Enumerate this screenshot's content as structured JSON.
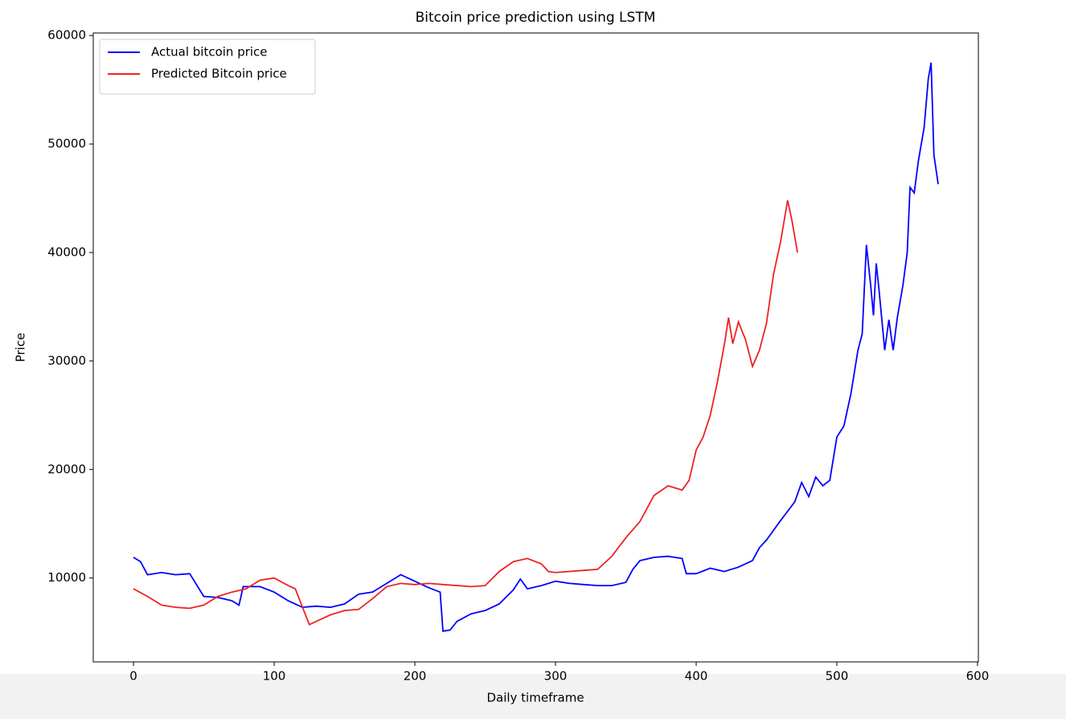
{
  "chart_data": {
    "type": "line",
    "title": "Bitcoin price prediction using LSTM",
    "x_label": "Daily timeframe",
    "y_label": "Price",
    "xlim": [
      -28.6,
      600.6
    ],
    "ylim": [
      2265,
      60235
    ],
    "xticks": [
      0,
      100,
      200,
      300,
      400,
      500,
      600
    ],
    "yticks": [
      10000,
      20000,
      30000,
      40000,
      50000,
      60000
    ],
    "legend": "upper left",
    "series": [
      {
        "name": "Actual bitcoin price",
        "color": "#0000ff",
        "x": [
          0,
          5,
          10,
          20,
          30,
          40,
          50,
          60,
          70,
          75,
          78,
          90,
          100,
          110,
          120,
          130,
          140,
          150,
          160,
          170,
          180,
          190,
          200,
          210,
          218,
          220,
          225,
          230,
          240,
          250,
          260,
          270,
          275,
          280,
          290,
          300,
          310,
          320,
          330,
          340,
          350,
          355,
          360,
          370,
          380,
          390,
          393,
          400,
          410,
          420,
          430,
          440,
          445,
          450,
          460,
          470,
          475,
          480,
          485,
          490,
          495,
          500,
          505,
          510,
          515,
          518,
          521,
          524,
          526,
          528,
          530,
          534,
          537,
          540,
          543,
          547,
          550,
          552,
          555,
          558,
          562,
          565,
          567,
          569,
          572
        ],
        "values": [
          11900,
          11500,
          10300,
          10500,
          10300,
          10400,
          8300,
          8200,
          7900,
          7500,
          9200,
          9200,
          8700,
          7900,
          7300,
          7400,
          7300,
          7600,
          8500,
          8700,
          9500,
          10300,
          9700,
          9100,
          8700,
          5100,
          5200,
          6000,
          6700,
          7000,
          7600,
          8900,
          9900,
          9000,
          9300,
          9700,
          9500,
          9400,
          9300,
          9300,
          9600,
          10800,
          11600,
          11900,
          12000,
          11800,
          10400,
          10400,
          10900,
          10600,
          11000,
          11600,
          12800,
          13500,
          15300,
          17000,
          18800,
          17500,
          19300,
          18500,
          19000,
          23000,
          24000,
          27000,
          31000,
          32500,
          40700,
          37000,
          34200,
          39000,
          36500,
          31000,
          33800,
          31000,
          34000,
          37000,
          40000,
          46000,
          45500,
          48500,
          51500,
          56000,
          57500,
          49000,
          46300
        ]
      },
      {
        "name": "Predicted Bitcoin price",
        "color": "#ee2222",
        "x": [
          0,
          10,
          20,
          30,
          40,
          50,
          60,
          70,
          80,
          90,
          100,
          110,
          115,
          125,
          130,
          140,
          150,
          160,
          170,
          180,
          190,
          200,
          210,
          220,
          240,
          250,
          260,
          270,
          280,
          290,
          295,
          300,
          320,
          330,
          340,
          350,
          360,
          370,
          380,
          390,
          395,
          400,
          405,
          410,
          415,
          420,
          423,
          426,
          430,
          435,
          440,
          445,
          450,
          455,
          460,
          465,
          468,
          472
        ],
        "values": [
          9000,
          8300,
          7500,
          7300,
          7200,
          7500,
          8300,
          8700,
          9000,
          9800,
          10000,
          9300,
          9000,
          5700,
          6000,
          6600,
          7000,
          7100,
          8100,
          9200,
          9500,
          9400,
          9500,
          9400,
          9200,
          9300,
          10600,
          11500,
          11800,
          11300,
          10600,
          10500,
          10700,
          10800,
          12000,
          13700,
          15200,
          17600,
          18500,
          18100,
          19000,
          21800,
          23000,
          25000,
          28000,
          31500,
          34000,
          31600,
          33600,
          32000,
          29500,
          31000,
          33500,
          38000,
          41000,
          44800,
          43000,
          40000
        ]
      }
    ]
  }
}
